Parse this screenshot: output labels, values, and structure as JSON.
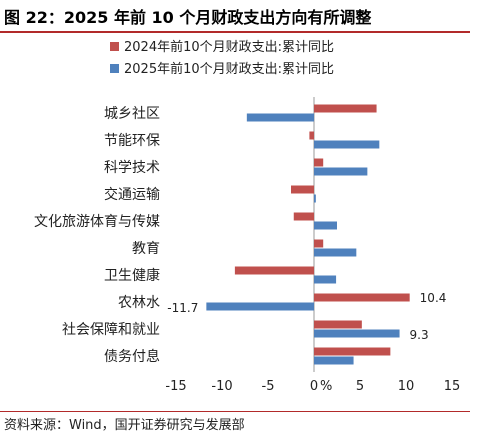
{
  "header": {
    "title": "图 22：2025 年前 10 个月财政支出方向有所调整"
  },
  "footer": {
    "source": "资料来源：Wind，国开证券研究与发展部"
  },
  "chart_data": {
    "type": "bar",
    "orientation": "horizontal",
    "categories": [
      "城乡社区",
      "节能环保",
      "科学技术",
      "交通运输",
      "文化旅游体育与传媒",
      "教育",
      "卫生健康",
      "农林水",
      "社会保障和就业",
      "债务付息"
    ],
    "series": [
      {
        "name": "2024年前10个月财政支出:累计同比",
        "color": "#c0504d",
        "values": [
          6.8,
          -0.5,
          1.0,
          -2.5,
          -2.2,
          1.0,
          -8.6,
          10.4,
          5.2,
          8.3
        ]
      },
      {
        "name": "2025年前10个月财政支出:累计同比",
        "color": "#4f81bd",
        "values": [
          -7.3,
          7.1,
          5.8,
          0.2,
          2.5,
          4.6,
          2.4,
          -11.7,
          9.3,
          4.3
        ]
      }
    ],
    "data_labels": [
      {
        "text": "10.4"
      },
      {
        "text": "-11.7"
      },
      {
        "text": "9.3"
      }
    ],
    "x_ticks": [
      "-15",
      "-10",
      "-5",
      "0",
      "5",
      "10",
      "15"
    ],
    "x_unit": "%",
    "xlim": [
      -15,
      15
    ],
    "legend_position": "top",
    "grid": false
  }
}
